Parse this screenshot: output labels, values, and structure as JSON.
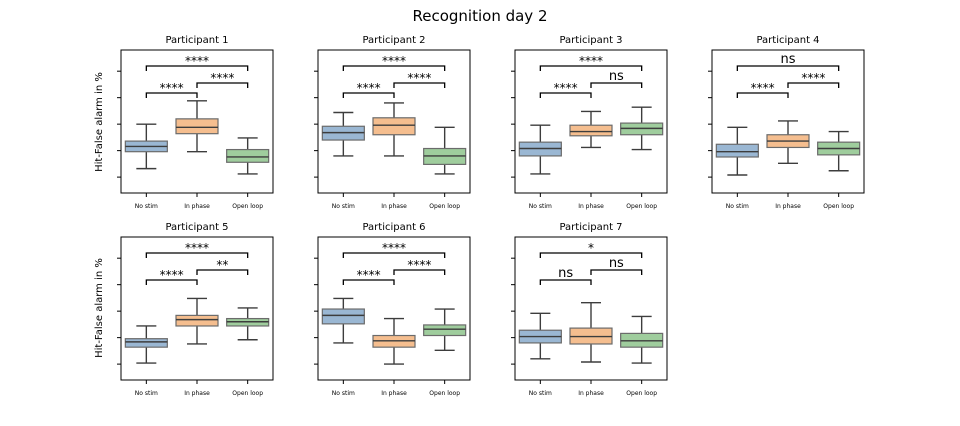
{
  "chart_data": {
    "type": "box",
    "title": "Recognition day 2",
    "ylabel": "Hit-False alarm in %",
    "categories": [
      "No stim",
      "In phase",
      "Open loop"
    ],
    "colors": [
      "#9ab7d3",
      "#f5be8f",
      "#9fcd9d"
    ],
    "panels": [
      {
        "title": "Participant 1",
        "ylim": [
          0,
          100
        ],
        "boxes": [
          {
            "min": 8,
            "q1": 24,
            "median": 29,
            "q3": 34,
            "max": 50
          },
          {
            "min": 24,
            "q1": 41,
            "median": 47,
            "q3": 55,
            "max": 72
          },
          {
            "min": 3,
            "q1": 14,
            "median": 19,
            "q3": 26,
            "max": 37
          }
        ],
        "annotations": [
          {
            "from": 0,
            "to": 1,
            "label": "****"
          },
          {
            "from": 1,
            "to": 2,
            "label": "****"
          },
          {
            "from": 0,
            "to": 2,
            "label": "****"
          }
        ]
      },
      {
        "title": "Participant 2",
        "ylim": [
          0,
          100
        ],
        "boxes": [
          {
            "min": 20,
            "q1": 35,
            "median": 42,
            "q3": 48,
            "max": 61
          },
          {
            "min": 20,
            "q1": 40,
            "median": 49,
            "q3": 56,
            "max": 70
          },
          {
            "min": 3,
            "q1": 12,
            "median": 20,
            "q3": 27,
            "max": 47
          }
        ],
        "annotations": [
          {
            "from": 0,
            "to": 1,
            "label": "****"
          },
          {
            "from": 1,
            "to": 2,
            "label": "****"
          },
          {
            "from": 0,
            "to": 2,
            "label": "****"
          }
        ]
      },
      {
        "title": "Participant 3",
        "ylim": [
          0,
          100
        ],
        "boxes": [
          {
            "min": 3,
            "q1": 20,
            "median": 27,
            "q3": 33,
            "max": 49
          },
          {
            "min": 28,
            "q1": 39,
            "median": 43,
            "q3": 49,
            "max": 62
          },
          {
            "min": 26,
            "q1": 40,
            "median": 46,
            "q3": 51,
            "max": 66
          }
        ],
        "annotations": [
          {
            "from": 0,
            "to": 1,
            "label": "****"
          },
          {
            "from": 1,
            "to": 2,
            "label": "ns"
          },
          {
            "from": 0,
            "to": 2,
            "label": "****"
          }
        ]
      },
      {
        "title": "Participant 4",
        "ylim": [
          0,
          100
        ],
        "boxes": [
          {
            "min": 2,
            "q1": 19,
            "median": 24,
            "q3": 31,
            "max": 47
          },
          {
            "min": 13,
            "q1": 28,
            "median": 34,
            "q3": 40,
            "max": 53
          },
          {
            "min": 6,
            "q1": 21,
            "median": 27,
            "q3": 33,
            "max": 43
          }
        ],
        "annotations": [
          {
            "from": 0,
            "to": 1,
            "label": "****"
          },
          {
            "from": 1,
            "to": 2,
            "label": "****"
          },
          {
            "from": 0,
            "to": 2,
            "label": "ns"
          }
        ]
      },
      {
        "title": "Participant 5",
        "ylim": [
          0,
          100
        ],
        "boxes": [
          {
            "min": 1,
            "q1": 16,
            "median": 21,
            "q3": 24,
            "max": 36
          },
          {
            "min": 19,
            "q1": 36,
            "median": 42,
            "q3": 46,
            "max": 62
          },
          {
            "min": 23,
            "q1": 36,
            "median": 40,
            "q3": 43,
            "max": 53
          }
        ],
        "annotations": [
          {
            "from": 0,
            "to": 1,
            "label": "****"
          },
          {
            "from": 1,
            "to": 2,
            "label": "**"
          },
          {
            "from": 0,
            "to": 2,
            "label": "****"
          }
        ]
      },
      {
        "title": "Participant 6",
        "ylim": [
          0,
          100
        ],
        "boxes": [
          {
            "min": 20,
            "q1": 38,
            "median": 46,
            "q3": 52,
            "max": 62
          },
          {
            "min": 0,
            "q1": 16,
            "median": 22,
            "q3": 27,
            "max": 43
          },
          {
            "min": 13,
            "q1": 27,
            "median": 33,
            "q3": 37,
            "max": 52
          }
        ],
        "annotations": [
          {
            "from": 0,
            "to": 1,
            "label": "****"
          },
          {
            "from": 1,
            "to": 2,
            "label": "****"
          },
          {
            "from": 0,
            "to": 2,
            "label": "****"
          }
        ]
      },
      {
        "title": "Participant 7",
        "ylim": [
          0,
          100
        ],
        "boxes": [
          {
            "min": 5,
            "q1": 20,
            "median": 26,
            "q3": 32,
            "max": 48
          },
          {
            "min": 2,
            "q1": 19,
            "median": 26,
            "q3": 34,
            "max": 58
          },
          {
            "min": 1,
            "q1": 16,
            "median": 22,
            "q3": 29,
            "max": 45
          }
        ],
        "annotations": [
          {
            "from": 0,
            "to": 1,
            "label": "ns"
          },
          {
            "from": 1,
            "to": 2,
            "label": "ns"
          },
          {
            "from": 0,
            "to": 2,
            "label": "*"
          }
        ]
      }
    ]
  }
}
